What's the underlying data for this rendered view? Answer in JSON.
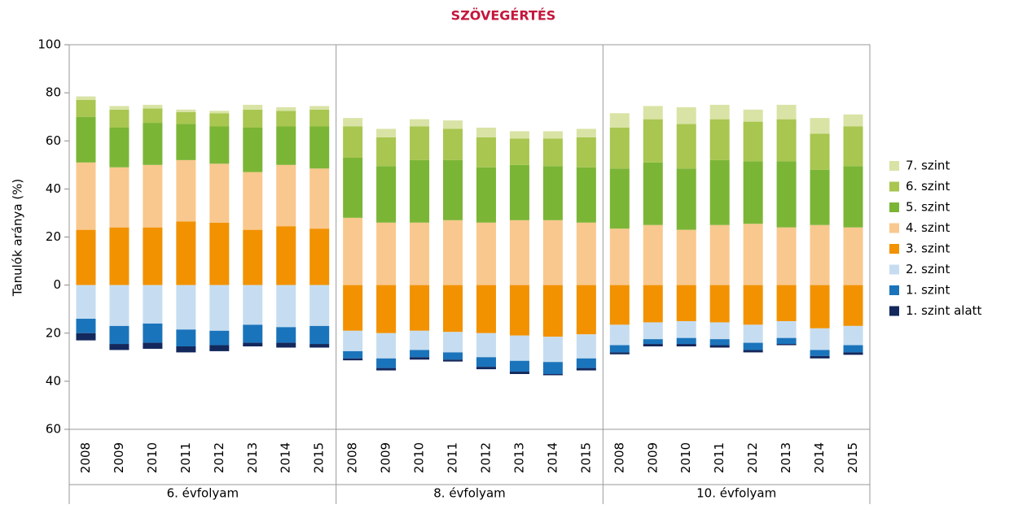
{
  "chart_data": {
    "type": "diverging-stacked-bar",
    "title": "SZÖVEGÉRTÉS",
    "y_label": "Tanulók aránya (%)",
    "categories": [
      "2008",
      "2009",
      "2010",
      "2011",
      "2012",
      "2013",
      "2014",
      "2015",
      "2008",
      "2009",
      "2010",
      "2011",
      "2012",
      "2013",
      "2014",
      "2015",
      "2008",
      "2009",
      "2010",
      "2011",
      "2012",
      "2013",
      "2014",
      "2015"
    ],
    "category_groups": [
      "6. évfolyam",
      "8. évfolyam",
      "10. évfolyam"
    ],
    "ylim": [
      -60,
      100
    ],
    "yticks": [
      100,
      80,
      60,
      40,
      20,
      0,
      {
        "value": -20,
        "label": "20"
      },
      {
        "value": -40,
        "label": "40"
      },
      {
        "value": -60,
        "label": "60"
      }
    ],
    "grid": false,
    "legend": "right",
    "series": [
      {
        "name": "7. szint",
        "color": "#d9e3a5",
        "values": [
          1.5,
          1.5,
          1.5,
          1,
          1,
          2,
          1.5,
          1.5,
          3.5,
          3.5,
          3,
          3.5,
          4,
          3,
          3,
          3.5,
          6,
          5.5,
          7,
          6,
          5,
          6,
          6.5,
          5
        ]
      },
      {
        "name": "6. szint",
        "color": "#a8c650",
        "values": [
          7,
          7.5,
          6,
          5,
          5.5,
          7.5,
          6.5,
          7,
          13,
          12,
          14,
          13,
          12.5,
          11,
          11.5,
          12.5,
          17,
          18,
          18.5,
          17,
          16.5,
          17.5,
          15,
          16.5
        ]
      },
      {
        "name": "5. szint",
        "color": "#7bb536",
        "values": [
          19,
          16.5,
          17.5,
          15,
          15.5,
          18.5,
          16,
          17.5,
          25,
          23.5,
          26,
          25,
          23,
          23,
          22.5,
          23,
          25,
          26,
          25.5,
          27,
          26,
          27.5,
          23,
          25.5
        ]
      },
      {
        "name": "4. szint",
        "color": "#f9c88e",
        "values": [
          28,
          25,
          26,
          25.5,
          24.5,
          24,
          25.5,
          25,
          28,
          26,
          26,
          27,
          26,
          27,
          27,
          26,
          23.5,
          25,
          23,
          25,
          25.5,
          24,
          25,
          24
        ]
      },
      {
        "name": "3. szint",
        "color": "#f29200",
        "values": [
          23,
          24,
          24,
          26.5,
          26,
          23,
          24.5,
          23.5,
          -19,
          -20,
          -19,
          -19.5,
          -20,
          -21,
          -21.5,
          -20.5,
          -16.5,
          -15.5,
          -15,
          -15.5,
          -16.5,
          -15,
          -18,
          -17
        ]
      },
      {
        "name": "2. szint",
        "color": "#c6ddf1",
        "values": [
          -14,
          -17,
          -16,
          -18.5,
          -19,
          -16.5,
          -17.5,
          -17,
          -8.5,
          -10.5,
          -8,
          -8.5,
          -10,
          -10.5,
          -10.5,
          -10,
          -8.5,
          -7,
          -7,
          -7,
          -7.5,
          -7,
          -9,
          -8
        ]
      },
      {
        "name": "1. szint",
        "color": "#1a74bb",
        "values": [
          -6,
          -7.5,
          -8,
          -7,
          -6,
          -7.5,
          -6.5,
          -7.5,
          -3,
          -4,
          -3,
          -3,
          -4,
          -4.5,
          -5,
          -4,
          -3,
          -2,
          -2.5,
          -2.5,
          -3,
          -2.5,
          -2.5,
          -3
        ]
      },
      {
        "name": "1. szint alatt",
        "color": "#13285c",
        "values": [
          -3,
          -2.5,
          -2.5,
          -2.5,
          -2.5,
          -1.5,
          -2,
          -1.5,
          -0.8,
          -1,
          -1,
          -0.8,
          -1,
          -1,
          -0.5,
          -1,
          -0.8,
          -1,
          -1,
          -1,
          -1,
          -0.5,
          -1,
          -1
        ]
      }
    ]
  }
}
